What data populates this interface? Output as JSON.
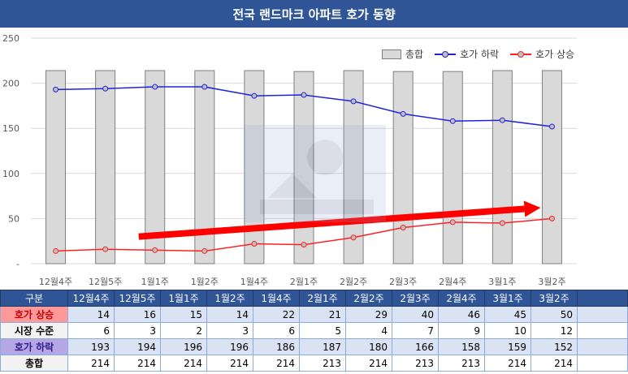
{
  "title": "전국 랜드마크 아파트 호가 동향",
  "colors": {
    "header": "#2f5597",
    "fall_line": "#2222dd",
    "rise_line": "#ff2222",
    "bar_fill": "#d9d9d9",
    "arrow": "#ff0000"
  },
  "legend": {
    "total": "총합",
    "fall": "호가 하락",
    "rise": "호가 상승"
  },
  "chart_data": {
    "type": "bar+line",
    "categories": [
      "12월4주",
      "12월5주",
      "1월1주",
      "1월2주",
      "1월4주",
      "2월1주",
      "2월2주",
      "2월3주",
      "2월4주",
      "3월1주",
      "3월2주"
    ],
    "ylim": [
      0,
      250
    ],
    "yticks": [
      "-",
      "50",
      "100",
      "150",
      "200",
      "250"
    ],
    "grid": true,
    "legend_position": "top-right",
    "series": [
      {
        "name": "총합",
        "kind": "bar",
        "values": [
          214,
          214,
          214,
          214,
          214,
          213,
          214,
          213,
          213,
          214,
          214
        ]
      },
      {
        "name": "호가 하락",
        "kind": "line",
        "values": [
          193,
          194,
          196,
          196,
          186,
          187,
          180,
          166,
          158,
          159,
          152
        ]
      },
      {
        "name": "호가 상승",
        "kind": "line",
        "values": [
          14,
          16,
          15,
          14,
          22,
          21,
          29,
          40,
          46,
          45,
          50
        ]
      }
    ]
  },
  "table": {
    "header_label": "구분",
    "columns": [
      "12월4주",
      "12월5주",
      "1월1주",
      "1월2주",
      "1월4주",
      "2월1주",
      "2월2주",
      "2월3주",
      "2월4주",
      "3월1주",
      "3월2주"
    ],
    "rows": [
      {
        "label": "호가 상승",
        "values": [
          "14",
          "16",
          "15",
          "14",
          "22",
          "21",
          "29",
          "40",
          "46",
          "45",
          "50"
        ]
      },
      {
        "label": "시장 수준",
        "values": [
          "6",
          "3",
          "2",
          "3",
          "6",
          "5",
          "4",
          "7",
          "9",
          "10",
          "12"
        ]
      },
      {
        "label": "호가 하락",
        "values": [
          "193",
          "194",
          "196",
          "196",
          "186",
          "187",
          "180",
          "166",
          "158",
          "159",
          "152"
        ]
      },
      {
        "label": "총합",
        "values": [
          "214",
          "214",
          "214",
          "214",
          "214",
          "213",
          "214",
          "213",
          "213",
          "214",
          "214"
        ]
      }
    ]
  }
}
